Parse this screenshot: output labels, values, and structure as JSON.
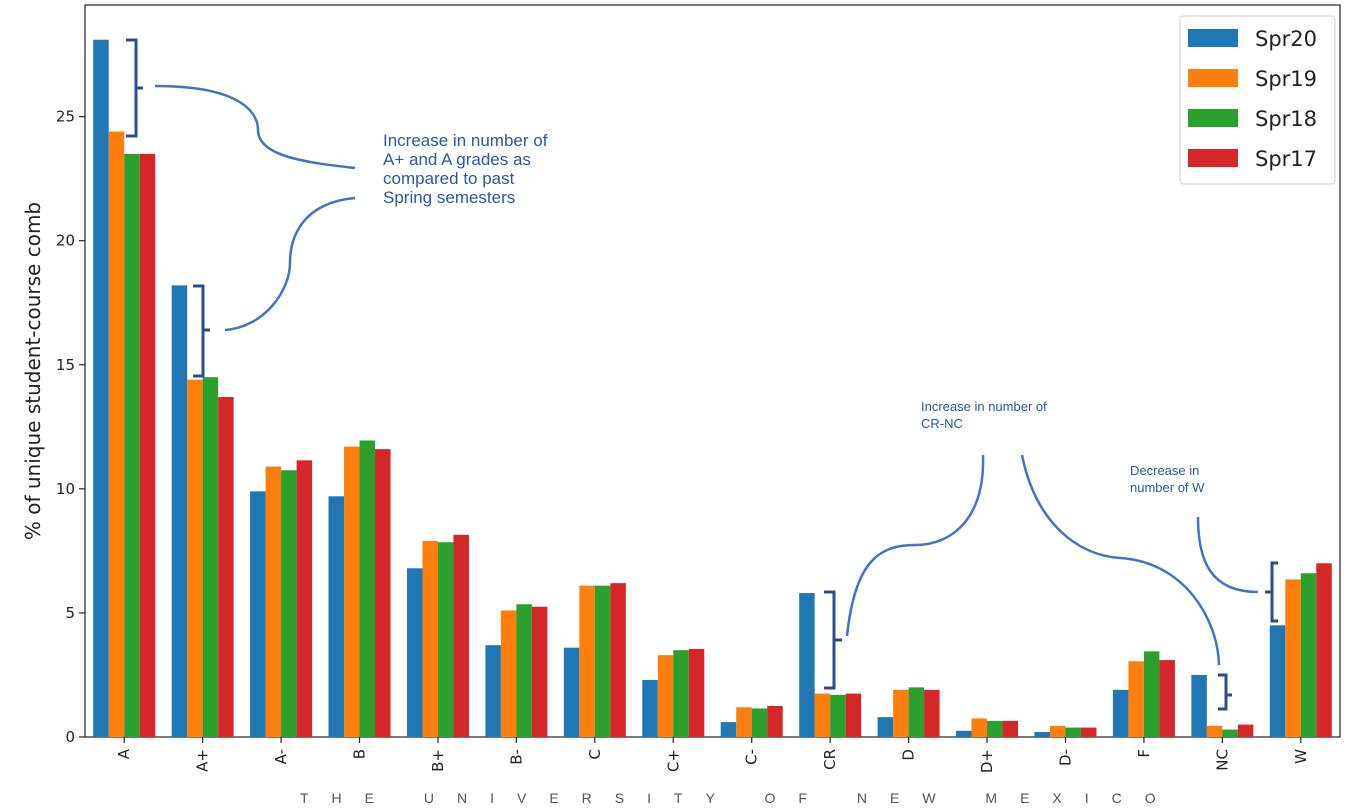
{
  "chart_data": {
    "type": "bar",
    "title": "",
    "xlabel": "",
    "ylabel": "% of unique student-course comb",
    "ylim": [
      0,
      29.5
    ],
    "yticks": [
      0,
      5,
      10,
      15,
      20,
      25
    ],
    "categories": [
      "A",
      "A+",
      "A-",
      "B",
      "B+",
      "B-",
      "C",
      "C+",
      "C-",
      "CR",
      "D",
      "D+",
      "D-",
      "F",
      "NC",
      "W"
    ],
    "series": [
      {
        "name": "Spr20",
        "color": "#1f77b4",
        "values": [
          28.1,
          18.2,
          9.9,
          9.7,
          6.8,
          3.7,
          3.6,
          2.3,
          0.6,
          5.8,
          0.8,
          0.25,
          0.2,
          1.9,
          2.5,
          4.5
        ]
      },
      {
        "name": "Spr19",
        "color": "#ff7f0e",
        "values": [
          24.4,
          14.4,
          10.9,
          11.7,
          7.9,
          5.1,
          6.1,
          3.3,
          1.2,
          1.75,
          1.9,
          0.75,
          0.45,
          3.05,
          0.45,
          6.35
        ]
      },
      {
        "name": "Spr18",
        "color": "#2ca02c",
        "values": [
          23.5,
          14.5,
          10.75,
          11.95,
          7.85,
          5.35,
          6.1,
          3.5,
          1.15,
          1.7,
          2.0,
          0.65,
          0.38,
          3.45,
          0.3,
          6.6
        ]
      },
      {
        "name": "Spr17",
        "color": "#d62728",
        "values": [
          23.5,
          13.7,
          11.15,
          11.6,
          8.15,
          5.25,
          6.2,
          3.55,
          1.25,
          1.75,
          1.9,
          0.65,
          0.38,
          3.1,
          0.5,
          7.0
        ]
      }
    ],
    "legend_position": "top-right",
    "grid": false,
    "annotations": [
      "Increase in number of A+ and A grades as compared to past Spring semesters",
      "Increase in number of CR-NC",
      "Decrease in number of W"
    ]
  },
  "annotations": {
    "ab_lines": [
      "Increase in number of",
      "A+ and A grades as",
      "compared to past",
      "Spring semesters"
    ],
    "crnc_lines": [
      "Increase in number of",
      "CR-NC"
    ],
    "w_lines": [
      "Decrease in",
      "number of W"
    ],
    "color": "#2f55a4"
  },
  "footer": {
    "text": "THE UNIVERSITY OF NEW MEXICO"
  }
}
